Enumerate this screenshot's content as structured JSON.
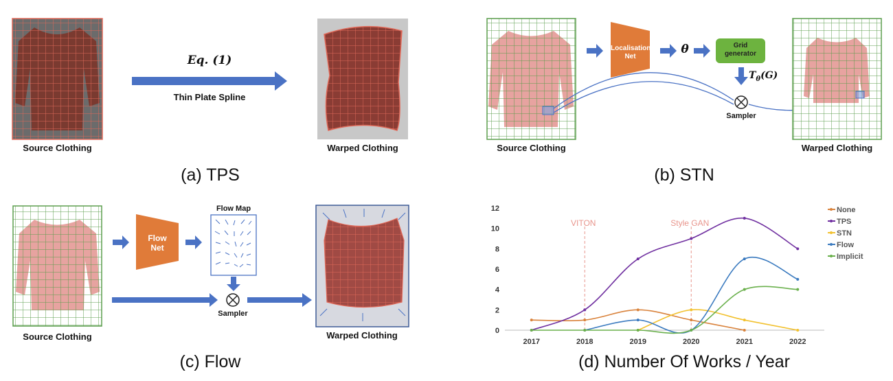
{
  "panels": {
    "tps": {
      "caption": "(a) TPS",
      "source_label": "Source Clothing",
      "warped_label": "Warped Clothing",
      "equation": "Eq. (1)",
      "method": "Thin Plate Spline"
    },
    "stn": {
      "caption": "(b) STN",
      "source_label": "Source Clothing",
      "warped_label": "Warped Clothing",
      "localisation_net_line1": "Localisation",
      "localisation_net_line2": "Net",
      "theta": "θ",
      "grid_generator_line1": "Grid",
      "grid_generator_line2": "generator",
      "transform": "T",
      "transform_sub": "θ",
      "transform_arg": "(G)",
      "sampler": "Sampler"
    },
    "flow": {
      "caption": "(c) Flow",
      "source_label": "Source Clothing",
      "warped_label": "Warped Clothing",
      "flow_net_line1": "Flow",
      "flow_net_line2": "Net",
      "flow_map": "Flow Map",
      "sampler": "Sampler"
    },
    "chart": {
      "caption": "(d) Number Of Works / Year"
    }
  },
  "colors": {
    "arrow": "#4a72c4",
    "net": "#e07b39",
    "grid_generator": "#6db33f",
    "grid_red": "#e06a5a",
    "grid_green": "#5b9e4d"
  },
  "chart_data": {
    "type": "line",
    "title": "",
    "xlabel": "",
    "ylabel": "",
    "categories": [
      "2017",
      "2018",
      "2019",
      "2020",
      "2021",
      "2022"
    ],
    "ylim": [
      0,
      12
    ],
    "yticks": [
      "0",
      "2",
      "4",
      "6",
      "8",
      "10",
      "12"
    ],
    "annotations": [
      {
        "label": "VITON",
        "x": "2018"
      },
      {
        "label": "Style GAN",
        "x": "2020"
      }
    ],
    "legend_position": "top-right",
    "series": [
      {
        "name": "None",
        "color": "#d9823b",
        "values": [
          1,
          1,
          2,
          1,
          0,
          null
        ]
      },
      {
        "name": "TPS",
        "color": "#7030a0",
        "values": [
          0,
          2,
          7,
          9,
          11,
          8
        ]
      },
      {
        "name": "STN",
        "color": "#f2c12e",
        "values": [
          null,
          null,
          0,
          2,
          1,
          0
        ]
      },
      {
        "name": "Flow",
        "color": "#3a7abf",
        "values": [
          null,
          0,
          1,
          0,
          7,
          5
        ]
      },
      {
        "name": "Implicit",
        "color": "#6ab04c",
        "values": [
          0,
          0,
          0,
          0,
          4,
          4
        ]
      }
    ]
  }
}
